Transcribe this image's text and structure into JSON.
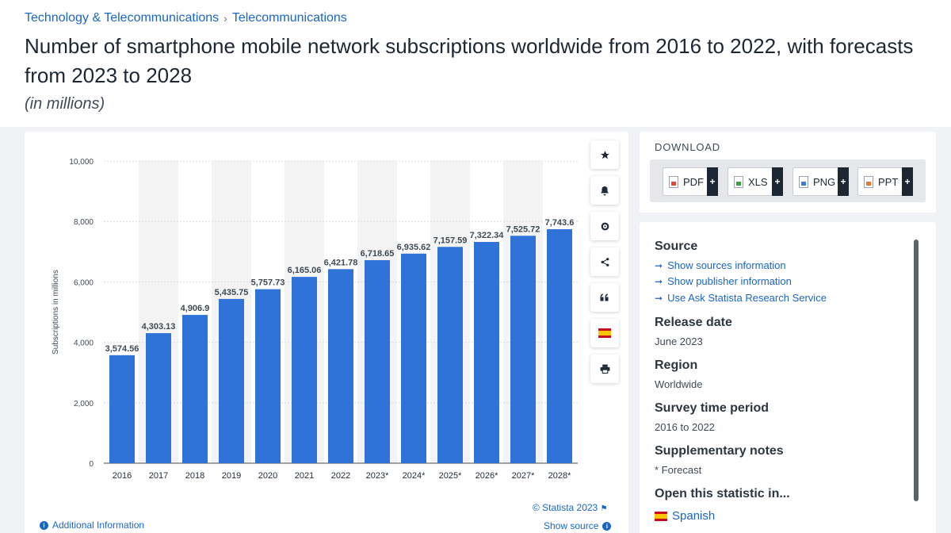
{
  "breadcrumb": {
    "items": [
      "Technology & Telecommunications",
      "Telecommunications"
    ],
    "separator": "›"
  },
  "title": "Number of smartphone mobile network subscriptions worldwide from 2016 to 2022, with forecasts from 2023 to 2028",
  "subtitle": "(in millions)",
  "tools": [
    "star-icon",
    "bell-icon",
    "gear-icon",
    "share-icon",
    "quote-icon",
    "spain-flag-icon",
    "print-icon"
  ],
  "chart_footer": {
    "copyright": "© Statista 2023",
    "additional_info": "Additional Information",
    "show_source": "Show source"
  },
  "download": {
    "title": "DOWNLOAD",
    "buttons": [
      "PDF",
      "XLS",
      "PNG",
      "PPT"
    ],
    "plus": "+"
  },
  "source_panel": {
    "source_heading": "Source",
    "links": [
      "Show sources information",
      "Show publisher information",
      "Use Ask Statista Research Service"
    ],
    "release_heading": "Release date",
    "release_value": "June 2023",
    "region_heading": "Region",
    "region_value": "Worldwide",
    "survey_heading": "Survey time period",
    "survey_value": "2016 to 2022",
    "notes_heading": "Supplementary notes",
    "notes_value": "* Forecast",
    "open_heading": "Open this statistic in...",
    "language": "Spanish"
  },
  "colors": {
    "bar": "#2f72d8",
    "link": "#1a66c5",
    "forecast_band": "#f3f3f4"
  },
  "chart_data": {
    "type": "bar",
    "categories": [
      "2016",
      "2017",
      "2018",
      "2019",
      "2020",
      "2021",
      "2022",
      "2023*",
      "2024*",
      "2025*",
      "2026*",
      "2027*",
      "2028*"
    ],
    "values": [
      3574.56,
      4303.13,
      4906.9,
      5435.75,
      5757.73,
      6165.06,
      6421.78,
      6718.65,
      6935.62,
      7157.59,
      7322.34,
      7525.72,
      7743.6
    ],
    "value_labels": [
      "3,574.56",
      "4,303.13",
      "4,906.9",
      "5,435.75",
      "5,757.73",
      "6,165.06",
      "6,421.78",
      "6,718.65",
      "6,935.62",
      "7,157.59",
      "7,322.34",
      "7,525.72",
      "7,743.6"
    ],
    "ylabel": "Subscriptions in millions",
    "yticks": [
      "0",
      "2,000",
      "4,000",
      "6,000",
      "8,000",
      "10,000"
    ],
    "ylim": [
      0,
      10000
    ],
    "grid": true
  }
}
